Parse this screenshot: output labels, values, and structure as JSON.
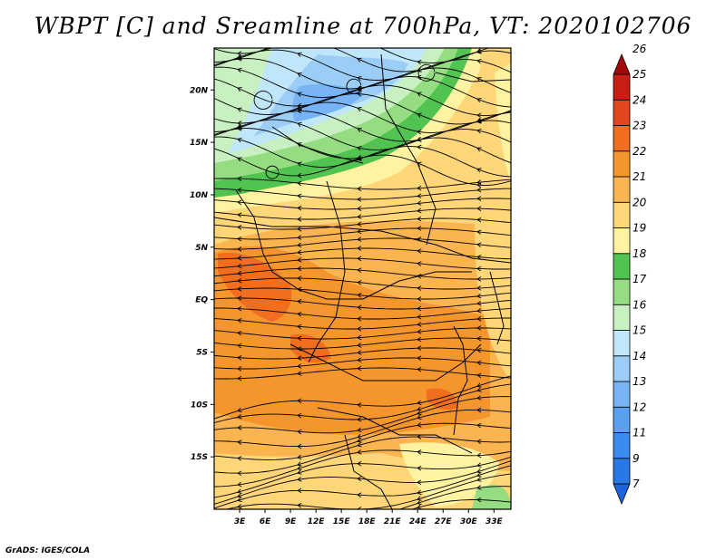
{
  "title": "WBPT [C] and Sreamline at 700hPa, VT: 2020102706",
  "footer": "GrADS: IGES/COLA",
  "map": {
    "lon_range": [
      0,
      35
    ],
    "lat_range": [
      -20,
      24
    ],
    "lat_labels": [
      "20N",
      "15N",
      "10N",
      "5N",
      "EQ",
      "5S",
      "10S",
      "15S"
    ],
    "lon_labels": [
      "3E",
      "6E",
      "9E",
      "12E",
      "15E",
      "18E",
      "21E",
      "24E",
      "27E",
      "30E",
      "33E"
    ]
  },
  "colorbar": {
    "levels": [
      "7",
      "9",
      "11",
      "12",
      "13",
      "14",
      "15",
      "16",
      "17",
      "18",
      "19",
      "20",
      "21",
      "22",
      "23",
      "24",
      "25",
      "26"
    ],
    "colors": [
      "#1e64dc",
      "#2878e6",
      "#3c8cf0",
      "#5aa0f0",
      "#78b4f5",
      "#9ccdf7",
      "#c0e6fa",
      "#c8f0c0",
      "#96dc82",
      "#50c350",
      "#fff2a0",
      "#ffd678",
      "#fab450",
      "#f5962d",
      "#f06e1e",
      "#e1461e",
      "#c81e14",
      "#a00a0a"
    ]
  },
  "legend": {
    "palette": [
      "#c0e6fa",
      "#c8f0c0",
      "#96dc82",
      "#50c350",
      "#fff2a0",
      "#ffd678",
      "#fab450",
      "#f5962d",
      "#f06e1e"
    ]
  }
}
